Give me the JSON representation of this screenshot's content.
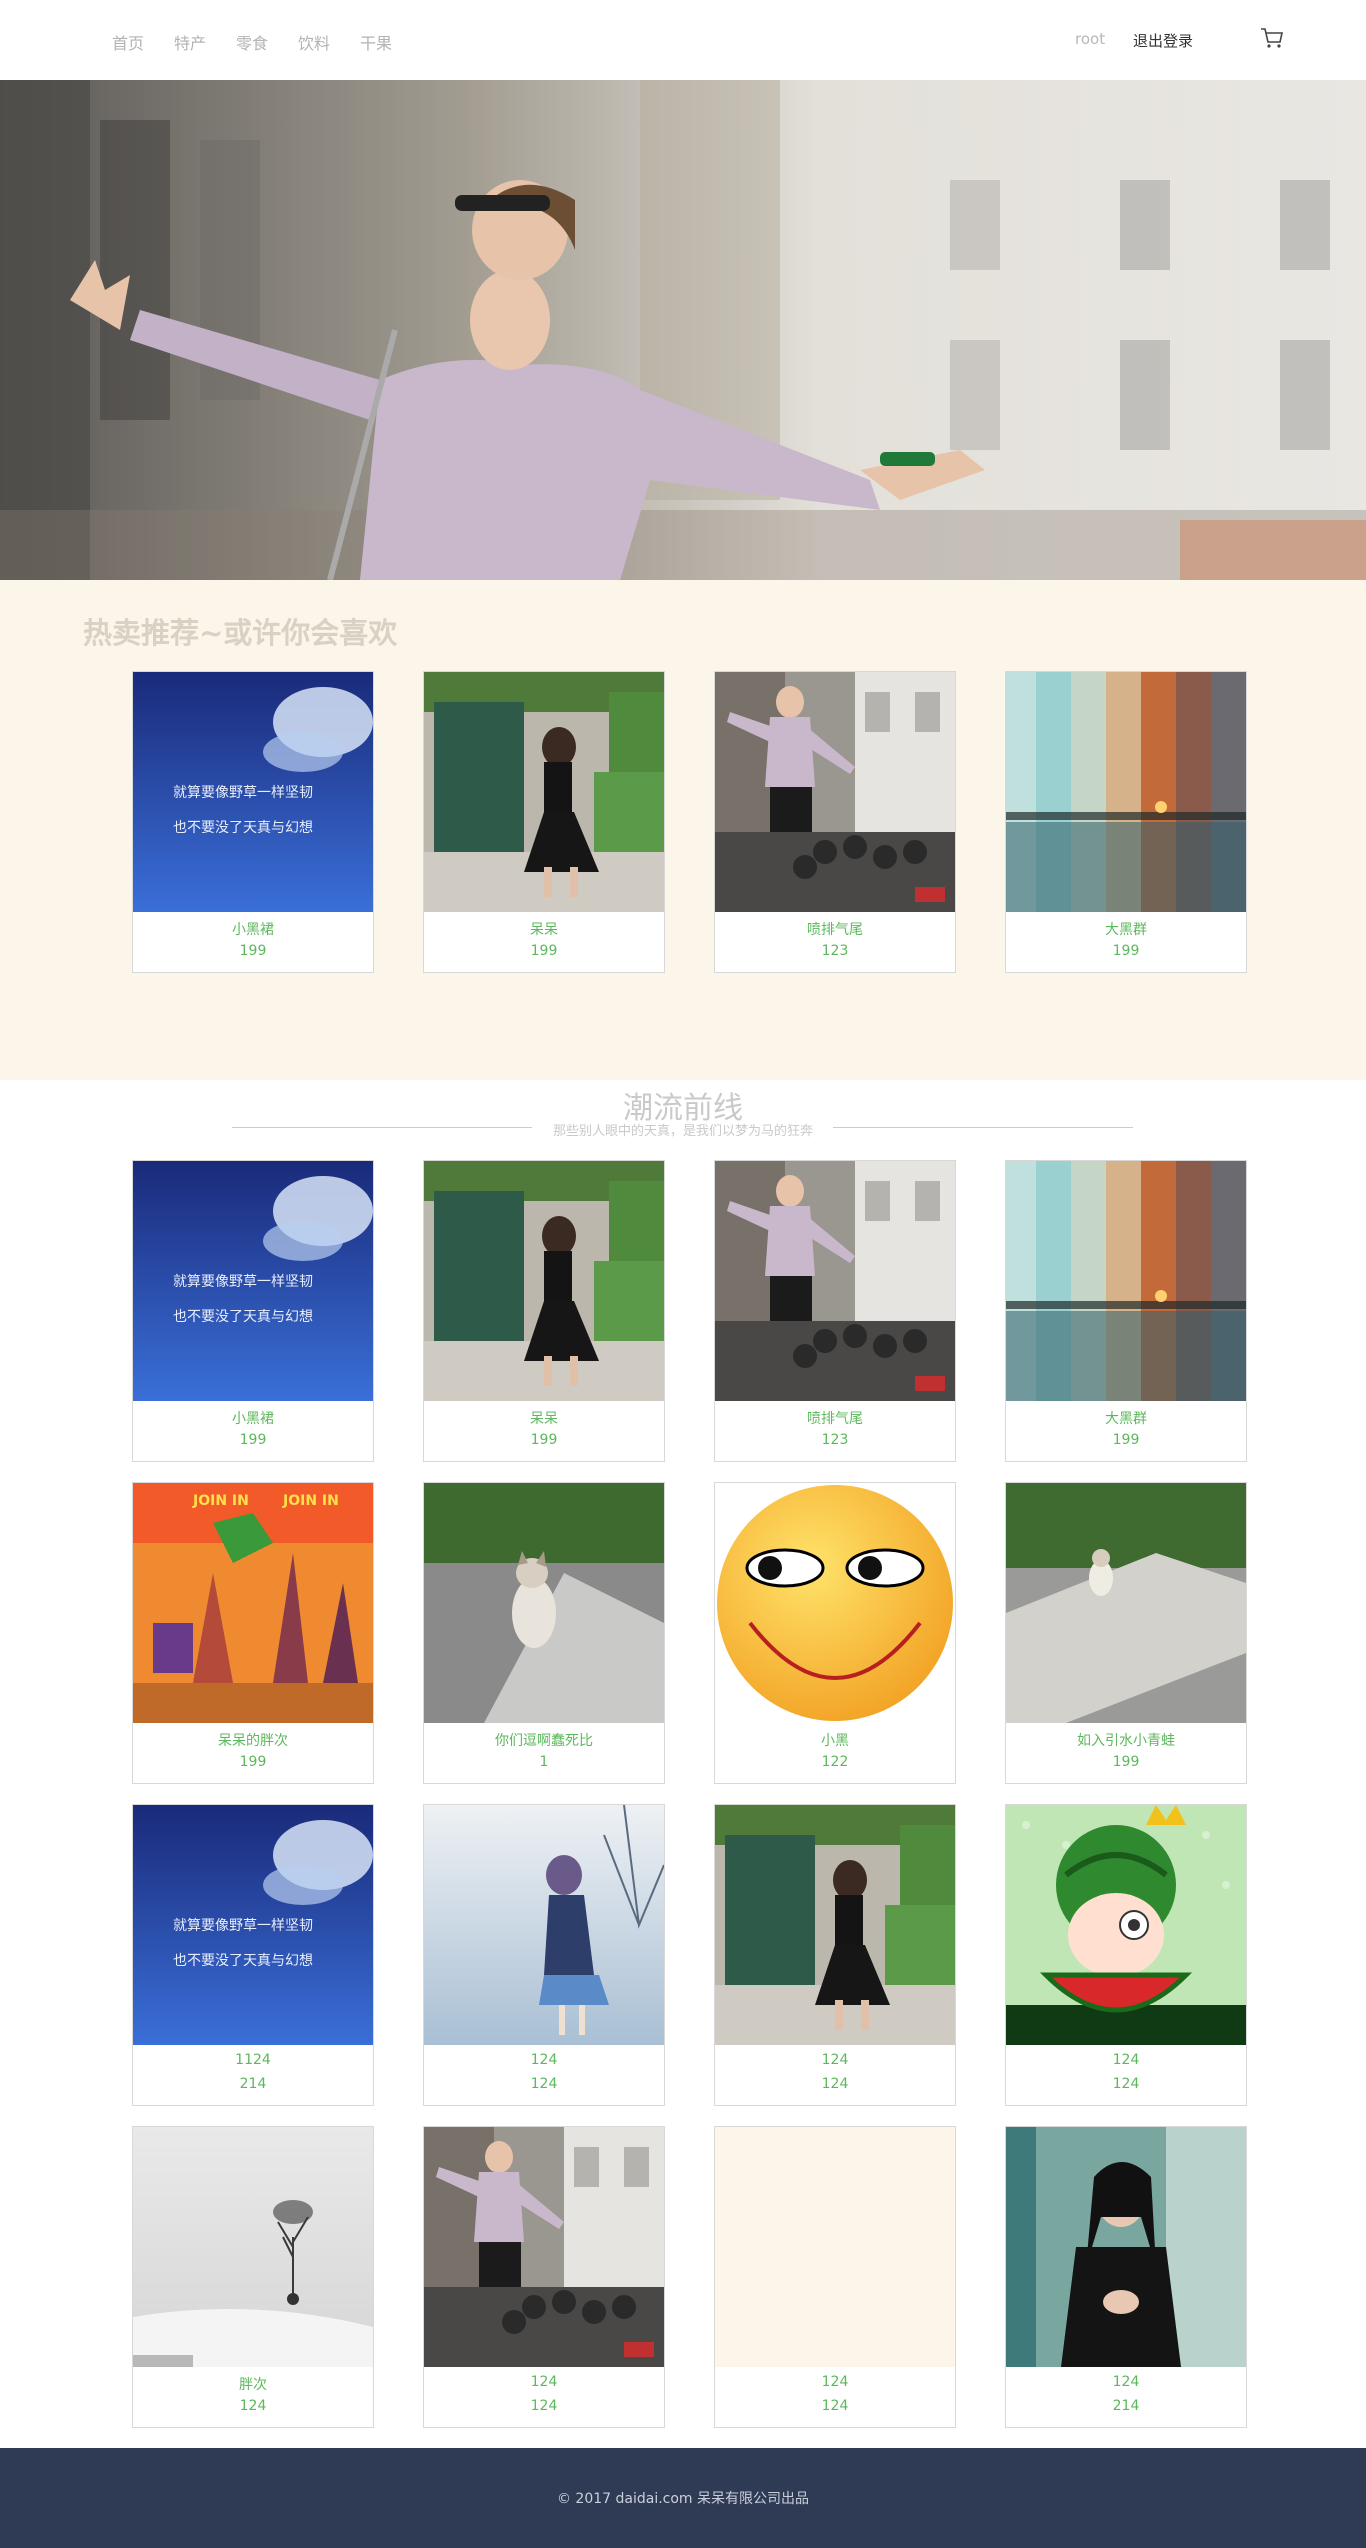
{
  "header": {
    "nav": [
      "首页",
      "特产",
      "零食",
      "饮料",
      "干果"
    ],
    "user": "root",
    "logout_label": "退出登录",
    "cart_icon": "cart-icon"
  },
  "hot_section": {
    "title": "热卖推荐~或许你会喜欢",
    "products": [
      {
        "name": "小黑裙",
        "price": "199",
        "image": "sky-poem"
      },
      {
        "name": "呆呆",
        "price": "199",
        "image": "girl-door"
      },
      {
        "name": "喷排气尾",
        "price": "123",
        "image": "street-woman"
      },
      {
        "name": "大黑群",
        "price": "199",
        "image": "sunset-strips"
      }
    ]
  },
  "trend_section": {
    "title": "潮流前线",
    "subtitle": "那些别人眼中的天真，是我们以梦为马的狂奔",
    "products": [
      {
        "name": "小黑裙",
        "price": "199",
        "image": "sky-poem"
      },
      {
        "name": "呆呆",
        "price": "199",
        "image": "girl-door"
      },
      {
        "name": "喷排气尾",
        "price": "123",
        "image": "street-woman"
      },
      {
        "name": "大黑群",
        "price": "199",
        "image": "sunset-strips"
      },
      {
        "name": "呆呆的胖次",
        "price": "199",
        "image": "game"
      },
      {
        "name": "你们逗啊蠢死比",
        "price": "1",
        "image": "cat"
      },
      {
        "name": "小黑",
        "price": "122",
        "image": "smiley"
      },
      {
        "name": "如入引水小青蛙",
        "price": "199",
        "image": "cat-road"
      },
      {
        "name": "1124",
        "price": "214",
        "image": "sky-poem"
      },
      {
        "name": "124",
        "price": "124",
        "image": "anime"
      },
      {
        "name": "124",
        "price": "124",
        "image": "girl-door"
      },
      {
        "name": "124",
        "price": "124",
        "image": "watermelon"
      },
      {
        "name": "胖次",
        "price": "124",
        "image": "tree"
      },
      {
        "name": "124",
        "price": "124",
        "image": "street-woman"
      },
      {
        "name": "124",
        "price": "124",
        "image": "blank"
      },
      {
        "name": "124",
        "price": "214",
        "image": "woman-black"
      }
    ]
  },
  "sky_poem_text": [
    "就算要像野草一样坚韧",
    "也不要没了天真与幻想"
  ],
  "game_text": "JOIN IN",
  "footer": {
    "copyright": "© 2017 daidai.com 呆呆有限公司出品"
  },
  "colors": {
    "accent": "#5cb85c",
    "footer_bg": "#2f3b55",
    "hot_bg": "#fbf5ea"
  }
}
